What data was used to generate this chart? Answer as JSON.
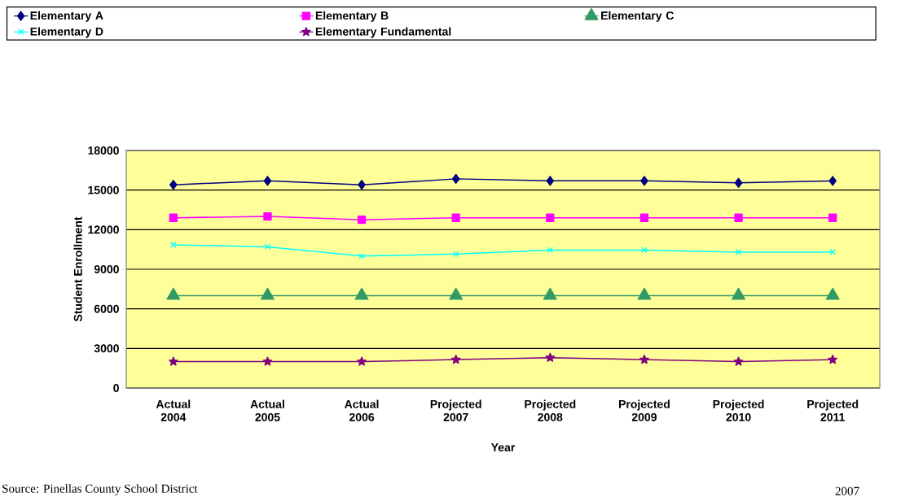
{
  "chart_data": {
    "type": "line",
    "xlabel": "Year",
    "ylabel": "Student Enrollment",
    "categories": [
      "Actual 2004",
      "Actual 2005",
      "Actual 2006",
      "Projected 2007",
      "Projected 2008",
      "Projected 2009",
      "Projected 2010",
      "Projected 2011"
    ],
    "series": [
      {
        "name": "Elementary A",
        "color": "#000080",
        "marker": "diamond",
        "values": [
          15400,
          15700,
          15400,
          15850,
          15700,
          15700,
          15550,
          15700
        ]
      },
      {
        "name": "Elementary B",
        "color": "#ff00ff",
        "marker": "square",
        "values": [
          12900,
          13000,
          12750,
          12900,
          12900,
          12900,
          12900,
          12900
        ]
      },
      {
        "name": "Elementary C",
        "color": "#339966",
        "marker": "triangle",
        "values": [
          7000,
          7000,
          7000,
          7000,
          7000,
          7000,
          7000,
          7000
        ]
      },
      {
        "name": "Elementary D",
        "color": "#00ffff",
        "marker": "cross",
        "values": [
          10850,
          10700,
          10000,
          10150,
          10450,
          10450,
          10300,
          10300
        ]
      },
      {
        "name": "Elementary Fundamental",
        "color": "#800080",
        "marker": "star",
        "values": [
          2000,
          2000,
          2000,
          2150,
          2300,
          2150,
          2000,
          2150
        ]
      }
    ],
    "ylim": [
      0,
      18000
    ],
    "yticks": [
      0,
      3000,
      6000,
      9000,
      12000,
      15000,
      18000
    ],
    "grid": "y",
    "legend": "top",
    "line_style": "solid",
    "annotations": [
      "Source: Pinellas County School District",
      "2007"
    ]
  }
}
